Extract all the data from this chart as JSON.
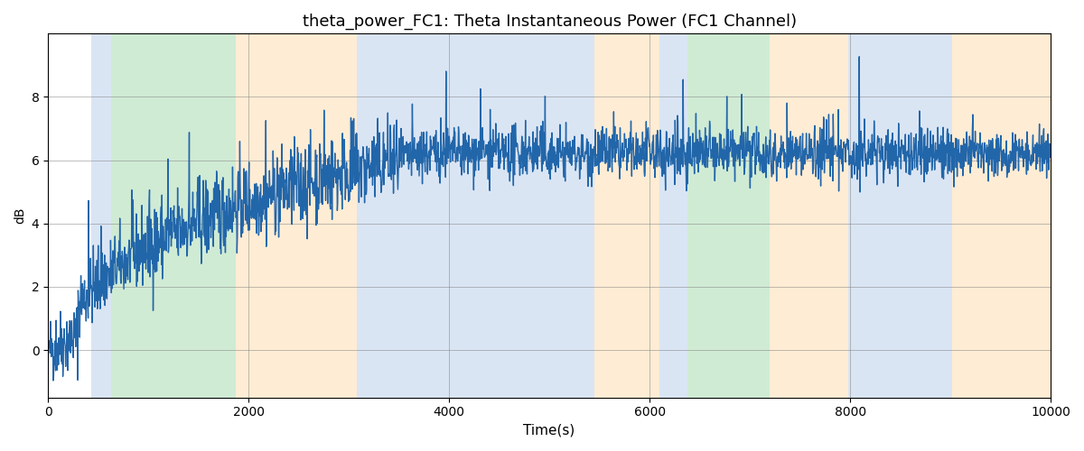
{
  "title": "theta_power_FC1: Theta Instantaneous Power (FC1 Channel)",
  "xlabel": "Time(s)",
  "ylabel": "dB",
  "xlim": [
    0,
    10000
  ],
  "ylim": [
    -1.5,
    10
  ],
  "background_regions": [
    {
      "xmin": 430,
      "xmax": 630,
      "color": "#aec6e8",
      "alpha": 0.45
    },
    {
      "xmin": 630,
      "xmax": 1870,
      "color": "#98d4a0",
      "alpha": 0.45
    },
    {
      "xmin": 1870,
      "xmax": 3080,
      "color": "#ffd7a0",
      "alpha": 0.45
    },
    {
      "xmin": 3080,
      "xmax": 5450,
      "color": "#aec6e8",
      "alpha": 0.45
    },
    {
      "xmin": 5450,
      "xmax": 6100,
      "color": "#ffd7a0",
      "alpha": 0.45
    },
    {
      "xmin": 6100,
      "xmax": 6380,
      "color": "#aec6e8",
      "alpha": 0.45
    },
    {
      "xmin": 6380,
      "xmax": 7200,
      "color": "#98d4a0",
      "alpha": 0.45
    },
    {
      "xmin": 7200,
      "xmax": 7980,
      "color": "#ffd7a0",
      "alpha": 0.45
    },
    {
      "xmin": 7980,
      "xmax": 9020,
      "color": "#aec6e8",
      "alpha": 0.45
    },
    {
      "xmin": 9020,
      "xmax": 10000,
      "color": "#ffd7a0",
      "alpha": 0.45
    }
  ],
  "line_color": "#2266aa",
  "line_width": 1.0,
  "grid": true,
  "seed": 42,
  "n_points": 2500,
  "title_fontsize": 13,
  "figsize": [
    12.0,
    5.0
  ],
  "dpi": 100,
  "xticks": [
    0,
    2000,
    4000,
    6000,
    8000,
    10000
  ],
  "yticks": [
    0,
    2,
    4,
    6,
    8
  ]
}
